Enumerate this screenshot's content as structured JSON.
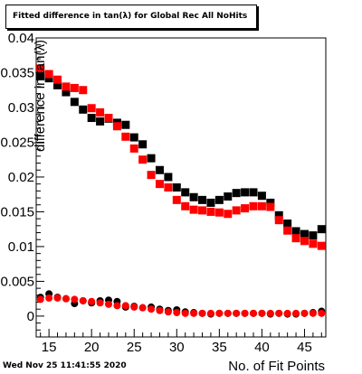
{
  "chart_data": {
    "type": "scatter",
    "title": "Fitted difference in tan(λ) for Global Rec All NoHits",
    "xlabel": "No. of Fit Points",
    "ylabel": "difference in tan(λ)",
    "xlim": [
      13.5,
      47.5
    ],
    "ylim": [
      -0.003,
      0.04
    ],
    "xticks": [
      15,
      20,
      25,
      30,
      35,
      40,
      45
    ],
    "yticks": [
      0,
      0.005,
      0.01,
      0.015,
      0.02,
      0.025,
      0.03,
      0.035,
      0.04
    ],
    "ytick_labels": [
      "0",
      "0.005",
      "0.01",
      "0.015",
      "0.02",
      "0.025",
      "0.03",
      "0.035",
      "0.04"
    ],
    "grid": false,
    "x": [
      14,
      15,
      16,
      17,
      18,
      19,
      20,
      21,
      22,
      23,
      24,
      25,
      26,
      27,
      28,
      29,
      30,
      31,
      32,
      33,
      34,
      35,
      36,
      37,
      38,
      39,
      40,
      41,
      42,
      43,
      44,
      45,
      46,
      47
    ],
    "series": [
      {
        "color": "#000000",
        "marker": "square",
        "values": [
          0.0345,
          0.0342,
          0.0332,
          0.0322,
          0.0308,
          0.0297,
          0.0285,
          0.028,
          0.0284,
          0.0278,
          0.0275,
          0.0257,
          0.0247,
          0.0227,
          0.021,
          0.02,
          0.0185,
          0.0178,
          0.0171,
          0.0167,
          0.0163,
          0.0167,
          0.0172,
          0.0177,
          0.0178,
          0.0178,
          0.0173,
          0.0163,
          0.0145,
          0.0133,
          0.0122,
          0.0118,
          0.0116,
          0.0125
        ]
      },
      {
        "color": "#ff0000",
        "marker": "square",
        "values": [
          0.0356,
          0.0348,
          0.034,
          0.033,
          0.0328,
          0.0325,
          0.0299,
          0.0293,
          0.0285,
          0.0273,
          0.0258,
          0.0241,
          0.0225,
          0.0203,
          0.019,
          0.0185,
          0.0167,
          0.0158,
          0.0153,
          0.0152,
          0.015,
          0.0149,
          0.0147,
          0.0152,
          0.0155,
          0.0158,
          0.0158,
          0.0157,
          0.0138,
          0.0123,
          0.0112,
          0.0108,
          0.0104,
          0.0101
        ]
      },
      {
        "color": "#000000",
        "marker": "circle",
        "values": [
          0.0027,
          0.0032,
          0.0027,
          0.0025,
          0.0018,
          0.0022,
          0.0019,
          0.0022,
          0.0023,
          0.0021,
          0.0013,
          0.0014,
          0.0012,
          0.0013,
          0.001,
          0.0008,
          0.0009,
          0.0006,
          0.0005,
          0.0004,
          0.0003,
          0.0004,
          0.0004,
          0.0004,
          0.0004,
          0.0004,
          0.0004,
          0.0003,
          0.0004,
          0.0003,
          0.0003,
          0.0004,
          0.0005,
          0.0007
        ]
      },
      {
        "color": "#ff0000",
        "marker": "circle",
        "values": [
          0.0024,
          0.0026,
          0.0026,
          0.0025,
          0.0024,
          0.0022,
          0.0021,
          0.0019,
          0.0017,
          0.0015,
          0.0015,
          0.0013,
          0.0012,
          0.001,
          0.0008,
          0.0006,
          0.0005,
          0.0004,
          0.0004,
          0.0004,
          0.0004,
          0.0004,
          0.0004,
          0.0004,
          0.0004,
          0.0004,
          0.0004,
          0.0004,
          0.0004,
          0.0004,
          0.0004,
          0.0004,
          0.0004,
          0.0004
        ]
      }
    ]
  },
  "footer": {
    "date": "Wed Nov 25 11:41:55 2020"
  }
}
